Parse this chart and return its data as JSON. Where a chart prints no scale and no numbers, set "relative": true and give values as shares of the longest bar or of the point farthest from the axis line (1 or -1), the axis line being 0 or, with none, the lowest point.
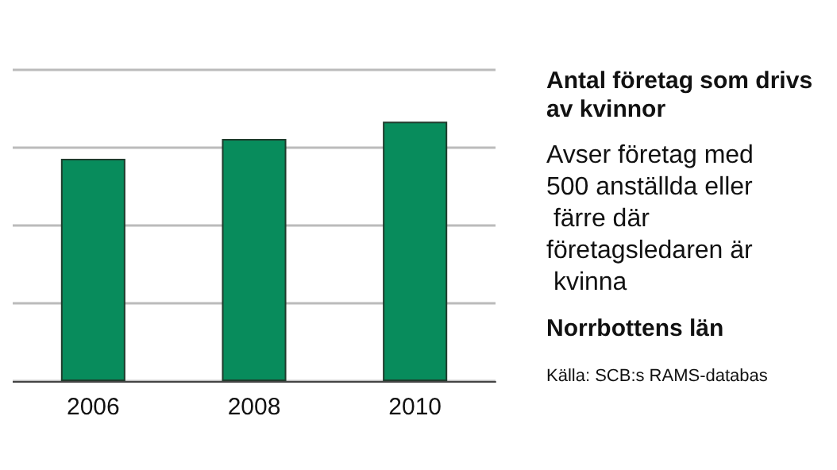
{
  "chart_data": {
    "type": "bar",
    "title": "Antal företag som drivs av kvinnor",
    "subtitle": "Avser företag med 500 anställda eller färre där företagsledaren är kvinna",
    "annotations": [
      "Norrbottens län",
      "Källa: SCB:s RAMS-databas"
    ],
    "categories": [
      "2006",
      "2008",
      "2010"
    ],
    "values": [
      0.857,
      0.934,
      1
    ],
    "color": "#088c5c",
    "relative": true,
    "grid": "y"
  }
}
